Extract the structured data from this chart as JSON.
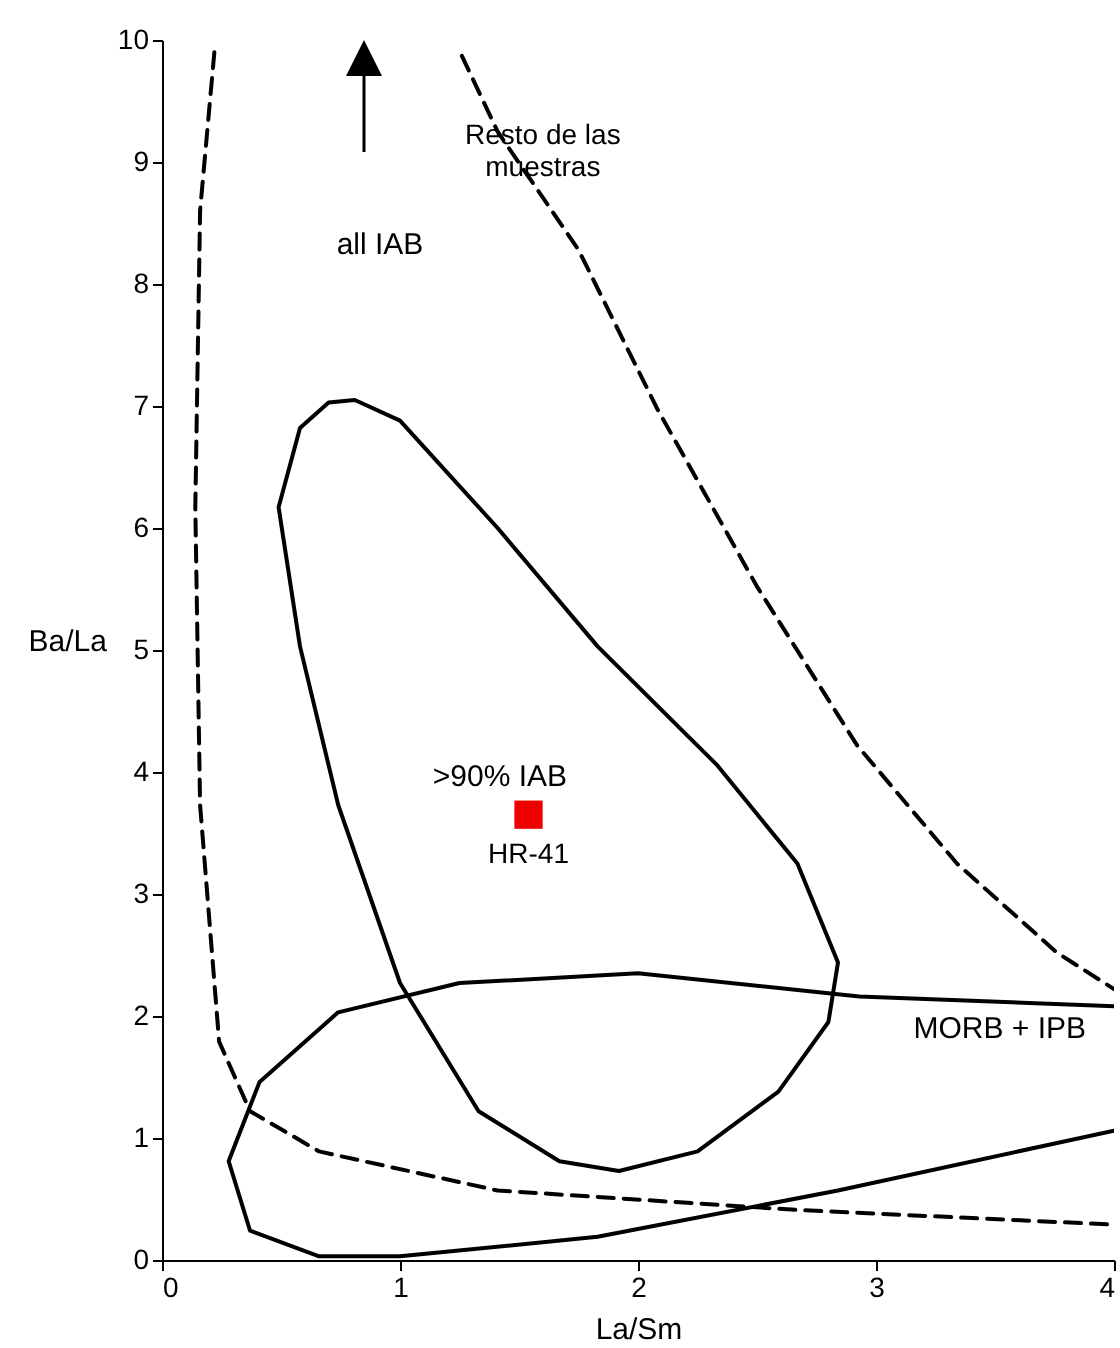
{
  "chart_data": {
    "type": "line",
    "xlabel": "La/Sm",
    "ylabel": "Ba/La",
    "xlim": [
      0,
      4
    ],
    "ylim": [
      0,
      10
    ],
    "xticks": [
      0,
      1,
      2,
      3,
      4
    ],
    "yticks": [
      0,
      1,
      2,
      3,
      4,
      5,
      6,
      7,
      8,
      9,
      10
    ],
    "grid": false,
    "series": [
      {
        "color": "#000000",
        "line_style": "dashed",
        "x": [
          0.22,
          0.16,
          0.14,
          0.16,
          0.24,
          0.37,
          0.66,
          1.41,
          2.67,
          4.0
        ],
        "values": [
          9.9,
          8.6,
          6.17,
          3.73,
          1.79,
          1.22,
          0.89,
          0.57,
          0.41,
          0.29
        ]
      },
      {
        "color": "#000000",
        "line_style": "solid",
        "x": [
          4.0,
          2.93,
          2.0,
          1.25,
          0.74,
          0.41,
          0.28,
          0.37,
          0.66,
          1.0,
          1.83,
          2.84,
          4.0
        ],
        "values": [
          2.08,
          2.16,
          2.35,
          2.27,
          2.03,
          1.46,
          0.81,
          0.24,
          0.03,
          0.03,
          0.19,
          0.57,
          1.06
        ]
      },
      {
        "color": "#000000",
        "line_style": "dashed",
        "x": [
          1.26,
          1.41,
          1.75,
          2.08,
          2.5,
          2.92,
          3.34,
          3.76,
          4.0
        ],
        "values": [
          9.87,
          9.25,
          8.28,
          6.98,
          5.52,
          4.22,
          3.25,
          2.52,
          2.22
        ]
      },
      {
        "type": "scatter",
        "name": "HR-41",
        "color": "#ee0000",
        "marker": "square",
        "x": [
          1.54
        ],
        "values": [
          3.65
        ]
      }
    ],
    "annotations": [
      "Resto de las\nmuestras",
      "all IAB",
      ">90% IAB",
      "MORB + IPB"
    ]
  }
}
